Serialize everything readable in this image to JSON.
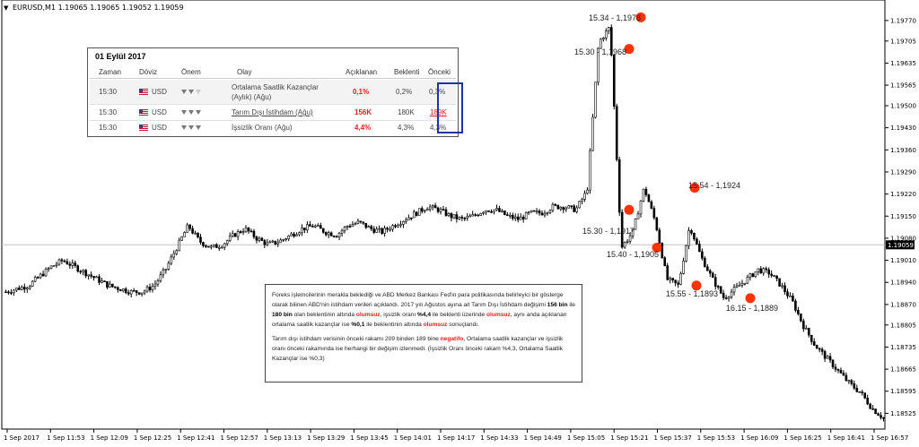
{
  "header": {
    "symbol": "EURUSD,M1",
    "o": "1.19065",
    "h": "1.19065",
    "l": "1.19052",
    "c": "1.19059"
  },
  "current_price": "1.19059",
  "colors": {
    "candle": "#000000",
    "marker": "#ff3300",
    "price_line": "#c0c0c0",
    "box_border": "#2233aa",
    "negative": "#e02020"
  },
  "chart_data": {
    "type": "candlestick",
    "title": "EURUSD,M1",
    "ylim": [
      1.18475,
      1.19835
    ],
    "y_ticks": [
      "1.19770",
      "1.19705",
      "1.19635",
      "1.19565",
      "1.19500",
      "1.19430",
      "1.19360",
      "1.19290",
      "1.19220",
      "1.19150",
      "1.19080",
      "1.19010",
      "1.18940",
      "1.18870",
      "1.18805",
      "1.18735",
      "1.18665",
      "1.18595",
      "1.18525"
    ],
    "x_ticks": [
      "1 Sep 2017",
      "1 Sep 11:53",
      "1 Sep 12:09",
      "1 Sep 12:25",
      "1 Sep 12:41",
      "1 Sep 12:57",
      "1 Sep 13:13",
      "1 Sep 13:29",
      "1 Sep 13:45",
      "1 Sep 14:01",
      "1 Sep 14:17",
      "1 Sep 14:33",
      "1 Sep 14:49",
      "1 Sep 15:05",
      "1 Sep 15:21",
      "1 Sep 15:37",
      "1 Sep 15:53",
      "1 Sep 16:09",
      "1 Sep 16:25",
      "1 Sep 16:41",
      "1 Sep 16:57"
    ],
    "path": [
      1.1891,
      1.1892,
      1.1893,
      1.1896,
      1.1899,
      1.1901,
      1.1899,
      1.1897,
      1.1895,
      1.1893,
      1.1892,
      1.1891,
      1.1891,
      1.1893,
      1.1898,
      1.1905,
      1.1912,
      1.1907,
      1.1905,
      1.1906,
      1.1909,
      1.1911,
      1.1908,
      1.1906,
      1.1907,
      1.1909,
      1.1911,
      1.1912,
      1.191,
      1.1909,
      1.1912,
      1.1913,
      1.1911,
      1.191,
      1.1912,
      1.1914,
      1.1916,
      1.1918,
      1.1917,
      1.1915,
      1.1914,
      1.1915,
      1.1917,
      1.1917,
      1.1915,
      1.1914,
      1.1916,
      1.1916,
      1.1918,
      1.1918,
      1.1917,
      1.1923,
      1.197,
      1.1975,
      1.1905,
      1.191,
      1.1924,
      1.1913,
      1.1895,
      1.1893,
      1.1912,
      1.1902,
      1.1895,
      1.1889,
      1.1892,
      1.1895,
      1.1898,
      1.1897,
      1.1893,
      1.1888,
      1.188,
      1.1874,
      1.187,
      1.1866,
      1.1862,
      1.1859,
      1.1854,
      1.1851
    ],
    "annotations": [
      {
        "label": "15.34 - 1,1978",
        "x": "1 Sep 15:34",
        "y": 1.1978
      },
      {
        "label": "15.30 - 1,1968",
        "x": "1 Sep 15:30",
        "y": 1.1968
      },
      {
        "label": "15.30 - 1,1917",
        "x": "1 Sep 15:30",
        "y": 1.1917
      },
      {
        "label": "15.40 - 1,1905",
        "x": "1 Sep 15:40",
        "y": 1.1905
      },
      {
        "label": "15.54 - 1,1924",
        "x": "1 Sep 15:54",
        "y": 1.1924
      },
      {
        "label": "15.55 - 1,1893",
        "x": "1 Sep 15:55",
        "y": 1.1893
      },
      {
        "label": "16.15 - 1,1889",
        "x": "1 Sep 16:15",
        "y": 1.1889
      }
    ]
  },
  "calendar": {
    "title": "01 Eylül 2017",
    "headers": {
      "time": "Zaman",
      "currency": "Döviz",
      "importance": "Önem",
      "event": "Olay",
      "actual": "Açıklanan",
      "forecast": "Beklenti",
      "previous": "Önceki"
    },
    "rows": [
      {
        "time": "15:30",
        "currency": "USD",
        "event": "Ortalama Saatlik Kazançlar (Aylık) (Ağu)",
        "actual": "0,1%",
        "forecast": "0,2%",
        "previous": "0,3%"
      },
      {
        "time": "15:30",
        "currency": "USD",
        "event": "Tarım Dışı İstihdam (Ağu)",
        "actual": "156K",
        "forecast": "180K",
        "previous": "189K"
      },
      {
        "time": "15:30",
        "currency": "USD",
        "event": "İşsizlik Oranı (Ağu)",
        "actual": "4,4%",
        "forecast": "4,3%",
        "previous": "4,3%"
      }
    ]
  },
  "note": {
    "p1_a": "Foreks işlemcilerinin merakla beklediği ve ABD Merkez Bankası Fed'in para politikasında belirleyici bir gösterge olarak bilinen ABD'nin istihdam verileri açıklandı. 2017 yılı Ağustos ayına ait Tarım Dışı İstihdam değişimi ",
    "p1_b": "156 bin",
    "p1_c": " ile ",
    "p1_d": "180 bin",
    "p1_e": " olan beklentinin altında ",
    "p1_f": "olumsuz",
    "p1_g": ", işsizlik oranı ",
    "p1_h": "%4,4",
    "p1_i": " ile beklenti üzerinde ",
    "p1_j": "olumsuz",
    "p1_k": ", aynı anda açıklanan ortalama saatlik kazançlar ise ",
    "p1_l": "%0,1",
    "p1_m": " ile beklentinin altında ",
    "p1_n": "olumsuz",
    "p1_o": " sonuçlandı.",
    "p2_a": "Tarım dışı istihdam verisinin önceki rakamı 209 binden 189 bine ",
    "p2_b": "negatifo",
    "p2_c": ",  Ortalama saatlik kazançlar ve işsizlik oranı önceki rakamında ise herhangi bir değişim izlenmedi. (İşsizlik Oranı önceki rakam %4,3, Ortalama Saatlik Kazançlar ise %0,3)"
  }
}
